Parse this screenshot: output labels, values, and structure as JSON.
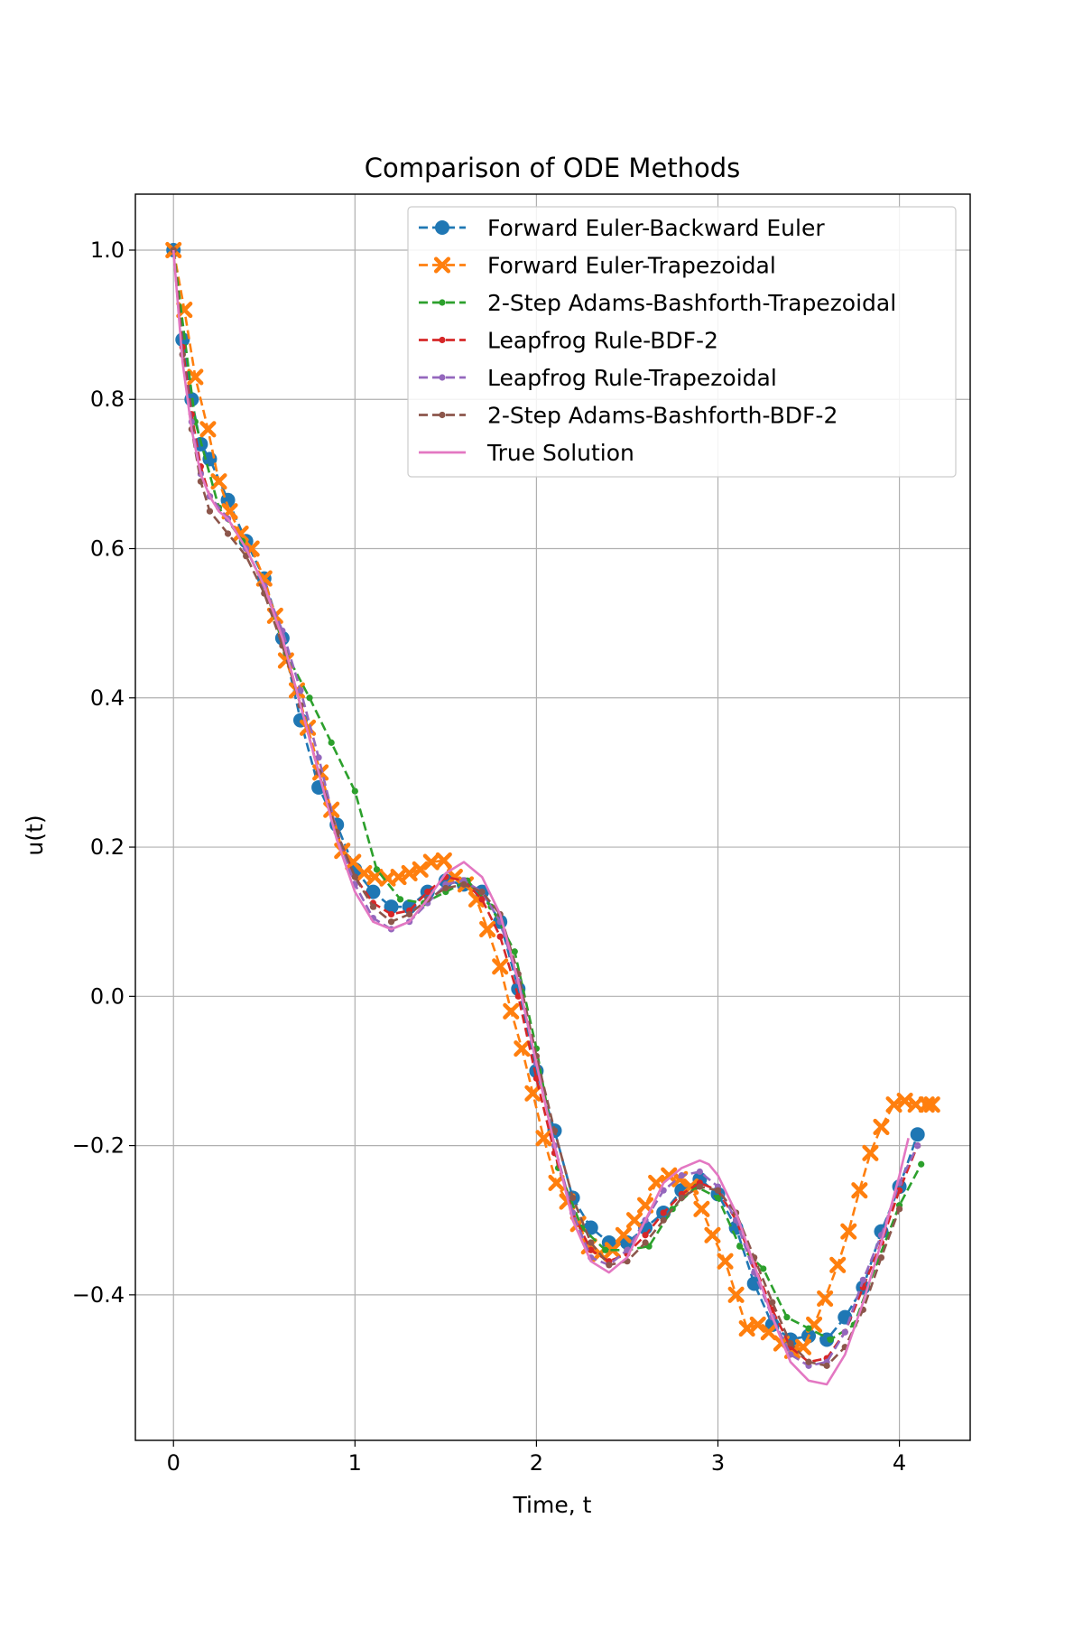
{
  "chart_data": {
    "type": "line",
    "title": "Comparison of ODE Methods",
    "xlabel": "Time, t",
    "ylabel": "u(t)",
    "xlim": [
      -0.21,
      4.39
    ],
    "ylim": [
      -0.595,
      1.075
    ],
    "xticks": [
      0,
      1,
      2,
      3,
      4
    ],
    "xtick_labels": [
      "0",
      "1",
      "2",
      "3",
      "4"
    ],
    "yticks": [
      -0.4,
      -0.2,
      0.0,
      0.2,
      0.4,
      0.6,
      0.8,
      1.0
    ],
    "ytick_labels": [
      "−0.4",
      "−0.2",
      "0.0",
      "0.2",
      "0.4",
      "0.6",
      "0.8",
      "1.0"
    ],
    "grid": true,
    "legend_position": "top-right",
    "series": [
      {
        "name": "Forward Euler-Backward Euler",
        "color": "#1f77b4",
        "marker": "circle",
        "dashed": true,
        "x": [
          0,
          0.05,
          0.1,
          0.15,
          0.2,
          0.3,
          0.4,
          0.5,
          0.6,
          0.7,
          0.8,
          0.9,
          1.0,
          1.1,
          1.2,
          1.3,
          1.4,
          1.5,
          1.6,
          1.7,
          1.8,
          1.9,
          2.0,
          2.1,
          2.2,
          2.3,
          2.4,
          2.5,
          2.6,
          2.7,
          2.8,
          2.9,
          3.0,
          3.1,
          3.2,
          3.3,
          3.4,
          3.5,
          3.6,
          3.7,
          3.8,
          3.9,
          4.0,
          4.1
        ],
        "y": [
          1.0,
          0.88,
          0.8,
          0.74,
          0.72,
          0.665,
          0.61,
          0.56,
          0.48,
          0.37,
          0.28,
          0.23,
          0.17,
          0.14,
          0.12,
          0.12,
          0.14,
          0.155,
          0.15,
          0.14,
          0.1,
          0.01,
          -0.1,
          -0.18,
          -0.27,
          -0.31,
          -0.33,
          -0.33,
          -0.31,
          -0.29,
          -0.26,
          -0.245,
          -0.265,
          -0.31,
          -0.385,
          -0.44,
          -0.46,
          -0.455,
          -0.46,
          -0.43,
          -0.39,
          -0.315,
          -0.255,
          -0.185
        ]
      },
      {
        "name": "Forward Euler-Trapezoidal",
        "color": "#ff7f0e",
        "marker": "x",
        "dashed": true,
        "x": [
          0,
          0.06,
          0.12,
          0.19,
          0.25,
          0.31,
          0.37,
          0.43,
          0.5,
          0.56,
          0.62,
          0.68,
          0.74,
          0.81,
          0.87,
          0.93,
          0.99,
          1.05,
          1.11,
          1.18,
          1.24,
          1.3,
          1.36,
          1.42,
          1.49,
          1.55,
          1.61,
          1.67,
          1.73,
          1.8,
          1.86,
          1.92,
          1.98,
          2.04,
          2.11,
          2.17,
          2.23,
          2.29,
          2.35,
          2.42,
          2.48,
          2.54,
          2.6,
          2.66,
          2.73,
          2.79,
          2.85,
          2.91,
          2.97,
          3.04,
          3.1,
          3.16,
          3.22,
          3.28,
          3.35,
          3.41,
          3.47,
          3.53,
          3.59,
          3.66,
          3.72,
          3.78,
          3.84,
          3.9,
          3.97,
          4.03,
          4.09,
          4.15,
          4.18
        ],
        "y": [
          1.0,
          0.92,
          0.83,
          0.76,
          0.69,
          0.65,
          0.62,
          0.6,
          0.56,
          0.51,
          0.45,
          0.41,
          0.36,
          0.3,
          0.25,
          0.195,
          0.18,
          0.165,
          0.16,
          0.158,
          0.16,
          0.165,
          0.17,
          0.18,
          0.182,
          0.16,
          0.15,
          0.13,
          0.09,
          0.04,
          -0.02,
          -0.07,
          -0.13,
          -0.19,
          -0.25,
          -0.275,
          -0.305,
          -0.335,
          -0.345,
          -0.34,
          -0.32,
          -0.3,
          -0.28,
          -0.25,
          -0.24,
          -0.245,
          -0.255,
          -0.285,
          -0.32,
          -0.355,
          -0.4,
          -0.445,
          -0.44,
          -0.45,
          -0.465,
          -0.475,
          -0.47,
          -0.44,
          -0.405,
          -0.36,
          -0.315,
          -0.26,
          -0.21,
          -0.175,
          -0.145,
          -0.14,
          -0.145,
          -0.145,
          -0.145
        ]
      },
      {
        "name": "2-Step Adams-Bashforth-Trapezoidal",
        "color": "#2ca02c",
        "marker": "dot",
        "dashed": true,
        "x": [
          0,
          0.12,
          0.25,
          0.38,
          0.5,
          0.62,
          0.75,
          0.87,
          1.0,
          1.12,
          1.25,
          1.38,
          1.5,
          1.62,
          1.75,
          1.88,
          2.0,
          2.12,
          2.25,
          2.38,
          2.5,
          2.62,
          2.75,
          2.88,
          3.0,
          3.12,
          3.25,
          3.38,
          3.5,
          3.62,
          3.75,
          3.88,
          4.0,
          4.12
        ],
        "y": [
          1.0,
          0.77,
          0.655,
          0.61,
          0.55,
          0.46,
          0.4,
          0.34,
          0.275,
          0.17,
          0.13,
          0.125,
          0.14,
          0.155,
          0.12,
          0.06,
          -0.07,
          -0.23,
          -0.31,
          -0.34,
          -0.34,
          -0.335,
          -0.285,
          -0.255,
          -0.27,
          -0.335,
          -0.365,
          -0.43,
          -0.445,
          -0.46,
          -0.44,
          -0.355,
          -0.28,
          -0.225
        ]
      },
      {
        "name": "Leapfrog Rule-BDF-2",
        "color": "#d62728",
        "marker": "dot",
        "dashed": true,
        "x": [
          0,
          0.05,
          0.1,
          0.15,
          0.2,
          0.3,
          0.4,
          0.5,
          0.6,
          0.7,
          0.8,
          0.9,
          1.0,
          1.1,
          1.2,
          1.3,
          1.4,
          1.5,
          1.6,
          1.7,
          1.8,
          1.9,
          2.0,
          2.1,
          2.2,
          2.3,
          2.4,
          2.5,
          2.6,
          2.7,
          2.8,
          2.9,
          3.0,
          3.1,
          3.2,
          3.3,
          3.4,
          3.5,
          3.6,
          3.7,
          3.8,
          3.9,
          4.0,
          4.1
        ],
        "y": [
          1.0,
          0.87,
          0.78,
          0.71,
          0.67,
          0.64,
          0.6,
          0.55,
          0.48,
          0.39,
          0.3,
          0.22,
          0.16,
          0.125,
          0.11,
          0.115,
          0.14,
          0.16,
          0.155,
          0.13,
          0.08,
          0.0,
          -0.11,
          -0.21,
          -0.29,
          -0.34,
          -0.355,
          -0.345,
          -0.32,
          -0.29,
          -0.265,
          -0.25,
          -0.26,
          -0.3,
          -0.36,
          -0.42,
          -0.47,
          -0.49,
          -0.485,
          -0.45,
          -0.39,
          -0.33,
          -0.26,
          -0.2
        ]
      },
      {
        "name": "Leapfrog Rule-Trapezoidal",
        "color": "#9467bd",
        "marker": "dot",
        "dashed": true,
        "x": [
          0,
          0.05,
          0.1,
          0.15,
          0.2,
          0.3,
          0.4,
          0.5,
          0.6,
          0.7,
          0.8,
          0.9,
          1.0,
          1.1,
          1.2,
          1.3,
          1.4,
          1.5,
          1.6,
          1.7,
          1.8,
          1.9,
          2.0,
          2.1,
          2.2,
          2.3,
          2.4,
          2.5,
          2.6,
          2.7,
          2.8,
          2.9,
          3.0,
          3.1,
          3.2,
          3.3,
          3.4,
          3.5,
          3.6,
          3.7,
          3.8,
          3.9,
          4.0,
          4.1
        ],
        "y": [
          1.0,
          0.86,
          0.77,
          0.7,
          0.67,
          0.64,
          0.6,
          0.55,
          0.49,
          0.41,
          0.32,
          0.22,
          0.15,
          0.105,
          0.09,
          0.1,
          0.125,
          0.15,
          0.155,
          0.14,
          0.1,
          0.02,
          -0.09,
          -0.2,
          -0.29,
          -0.35,
          -0.36,
          -0.34,
          -0.3,
          -0.26,
          -0.24,
          -0.235,
          -0.255,
          -0.3,
          -0.37,
          -0.43,
          -0.48,
          -0.495,
          -0.49,
          -0.45,
          -0.38,
          -0.32,
          -0.25,
          -0.2
        ]
      },
      {
        "name": "2-Step Adams-Bashforth-BDF-2",
        "color": "#8c564b",
        "marker": "dot",
        "dashed": true,
        "x": [
          0,
          0.05,
          0.1,
          0.15,
          0.2,
          0.3,
          0.4,
          0.5,
          0.6,
          0.7,
          0.8,
          0.9,
          1.0,
          1.1,
          1.2,
          1.3,
          1.4,
          1.5,
          1.6,
          1.7,
          1.8,
          1.9,
          2.0,
          2.1,
          2.2,
          2.3,
          2.4,
          2.5,
          2.6,
          2.7,
          2.8,
          2.9,
          3.0,
          3.1,
          3.2,
          3.3,
          3.4,
          3.5,
          3.6,
          3.7,
          3.8,
          3.9,
          4.0
        ],
        "y": [
          1.0,
          0.86,
          0.76,
          0.69,
          0.65,
          0.62,
          0.59,
          0.54,
          0.47,
          0.39,
          0.3,
          0.22,
          0.16,
          0.12,
          0.1,
          0.11,
          0.13,
          0.145,
          0.15,
          0.14,
          0.11,
          0.03,
          -0.08,
          -0.18,
          -0.27,
          -0.33,
          -0.36,
          -0.355,
          -0.33,
          -0.3,
          -0.27,
          -0.255,
          -0.26,
          -0.29,
          -0.35,
          -0.41,
          -0.465,
          -0.49,
          -0.495,
          -0.47,
          -0.42,
          -0.35,
          -0.285
        ]
      },
      {
        "name": "True Solution",
        "color": "#e377c2",
        "marker": "none",
        "dashed": false,
        "x": [
          0,
          0.05,
          0.1,
          0.15,
          0.2,
          0.25,
          0.3,
          0.35,
          0.4,
          0.5,
          0.6,
          0.7,
          0.8,
          0.9,
          1.0,
          1.1,
          1.2,
          1.3,
          1.4,
          1.5,
          1.6,
          1.7,
          1.8,
          1.9,
          2.0,
          2.1,
          2.2,
          2.3,
          2.4,
          2.5,
          2.6,
          2.7,
          2.8,
          2.9,
          2.95,
          3.0,
          3.1,
          3.2,
          3.3,
          3.4,
          3.5,
          3.6,
          3.7,
          3.8,
          3.9,
          4.0,
          4.05
        ],
        "y": [
          1.0,
          0.85,
          0.76,
          0.7,
          0.67,
          0.65,
          0.64,
          0.62,
          0.6,
          0.55,
          0.48,
          0.39,
          0.3,
          0.21,
          0.14,
          0.1,
          0.09,
          0.1,
          0.13,
          0.165,
          0.18,
          0.16,
          0.11,
          0.02,
          -0.09,
          -0.2,
          -0.3,
          -0.355,
          -0.37,
          -0.35,
          -0.3,
          -0.25,
          -0.23,
          -0.22,
          -0.225,
          -0.24,
          -0.29,
          -0.36,
          -0.43,
          -0.49,
          -0.515,
          -0.52,
          -0.48,
          -0.41,
          -0.33,
          -0.24,
          -0.19
        ]
      }
    ]
  }
}
